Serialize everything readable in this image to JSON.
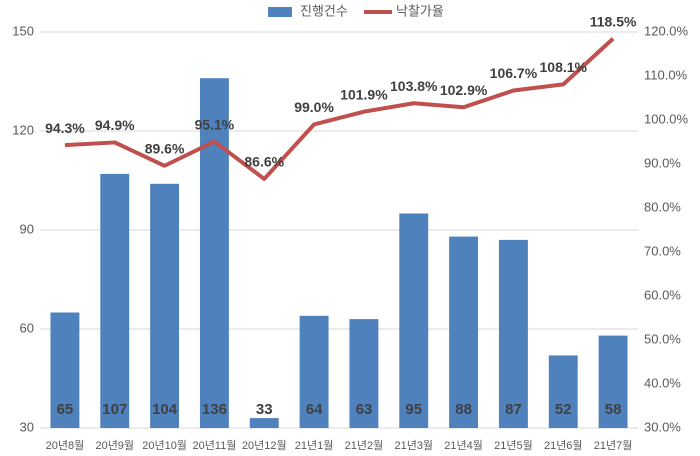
{
  "chart_data": {
    "type": "bar",
    "categories": [
      "20년8월",
      "20년9월",
      "20년10월",
      "20년11월",
      "20년12월",
      "21년1월",
      "21년2월",
      "21년3월",
      "21년4월",
      "21년5월",
      "21년6월",
      "21년7월"
    ],
    "series": [
      {
        "name": "진행건수",
        "type": "bar",
        "color": "#4f81bd",
        "values": [
          65,
          107,
          104,
          136,
          33,
          64,
          63,
          95,
          88,
          87,
          52,
          58
        ]
      },
      {
        "name": "낙찰가율",
        "type": "line",
        "axis": "y2",
        "color": "#c0504d",
        "values": [
          94.3,
          94.9,
          89.6,
          95.1,
          86.6,
          99.0,
          101.9,
          103.8,
          102.9,
          106.7,
          108.1,
          118.5
        ],
        "value_labels": [
          "94.3%",
          "94.9%",
          "89.6%",
          "95.1%",
          "86.6%",
          "99.0%",
          "101.9%",
          "103.8%",
          "102.9%",
          "106.7%",
          "108.1%",
          "118.5%"
        ]
      }
    ],
    "ylim": [
      30,
      150
    ],
    "yticks": [
      30,
      60,
      90,
      120,
      150
    ],
    "y2lim": [
      30,
      120
    ],
    "y2ticks": [
      {
        "value": 30,
        "label": "30.0%"
      },
      {
        "value": 40,
        "label": "40.0%"
      },
      {
        "value": 50,
        "label": "50.0%"
      },
      {
        "value": 60,
        "label": "60.0%"
      },
      {
        "value": 70,
        "label": "70.0%"
      },
      {
        "value": 80,
        "label": "80.0%"
      },
      {
        "value": 90,
        "label": "90.0%"
      },
      {
        "value": 100,
        "label": "100.0%"
      },
      {
        "value": 110,
        "label": "110.0%"
      },
      {
        "value": 120,
        "label": "120.0%"
      }
    ],
    "grid": true,
    "legend": "top"
  }
}
